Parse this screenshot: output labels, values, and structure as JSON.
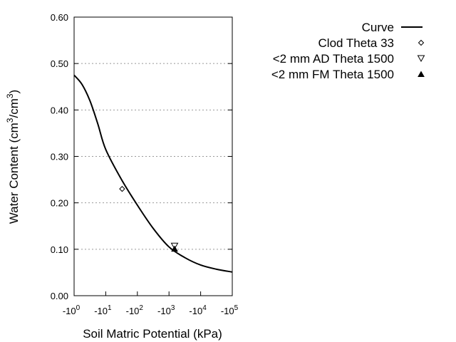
{
  "chart_data": {
    "type": "line",
    "xlabel": "Soil Matric Potential (kPa)",
    "ylabel": "Water Content (cm3/cm3)",
    "ylabel_parts": {
      "base1": "Water Content (cm",
      "sup1": "3",
      "mid": "/cm",
      "sup2": "3",
      "end": ")"
    },
    "x_scale": "log (negative potentials)",
    "xlim": [
      1,
      100000
    ],
    "ylim": [
      0,
      0.6
    ],
    "x_ticks": [
      {
        "base": "-10",
        "exp": "0",
        "value": 1
      },
      {
        "base": "-10",
        "exp": "1",
        "value": 10
      },
      {
        "base": "-10",
        "exp": "2",
        "value": 100
      },
      {
        "base": "-10",
        "exp": "3",
        "value": 1000
      },
      {
        "base": "-10",
        "exp": "4",
        "value": 10000
      },
      {
        "base": "-10",
        "exp": "5",
        "value": 100000
      }
    ],
    "y_ticks": [
      "0.00",
      "0.10",
      "0.20",
      "0.30",
      "0.40",
      "0.50",
      "0.60"
    ],
    "grid": "horizontal dotted",
    "legend_position": "top-right outside",
    "series": [
      {
        "name": "Curve",
        "kind": "line",
        "color": "#000000",
        "x": [
          1,
          1.78,
          3.16,
          5.62,
          10,
          31.6,
          100,
          316,
          1000,
          3162,
          10000,
          31623,
          100000
        ],
        "y": [
          0.475,
          0.455,
          0.42,
          0.37,
          0.315,
          0.25,
          0.195,
          0.145,
          0.105,
          0.082,
          0.066,
          0.057,
          0.051
        ]
      },
      {
        "name": "Clod Theta 33",
        "kind": "marker",
        "marker": "diamond-open",
        "x": [
          33
        ],
        "y": [
          0.23
        ]
      },
      {
        "name": "<2 mm AD Theta 1500",
        "kind": "marker",
        "marker": "triangle-down-open",
        "x": [
          1500
        ],
        "y": [
          0.107
        ]
      },
      {
        "name": "<2 mm FM Theta 1500",
        "kind": "marker",
        "marker": "triangle-up-filled",
        "x": [
          1500
        ],
        "y": [
          0.101
        ]
      }
    ]
  }
}
